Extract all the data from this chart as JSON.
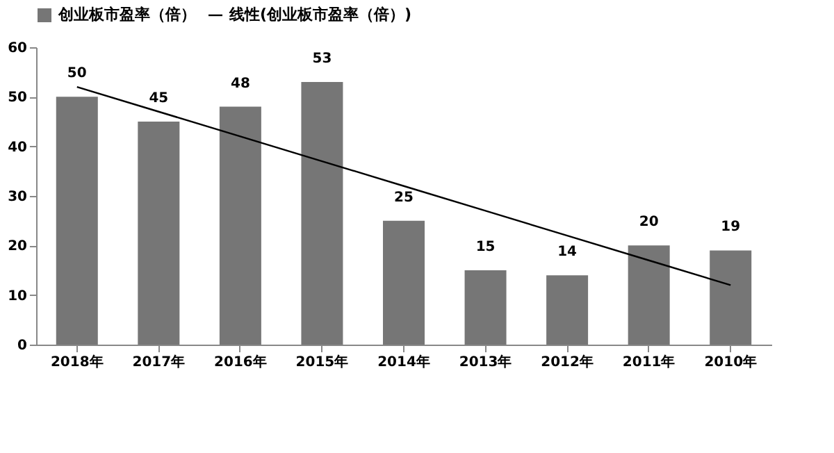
{
  "chart_data": {
    "type": "bar",
    "categories": [
      "2018年",
      "2017年",
      "2016年",
      "2015年",
      "2014年",
      "2013年",
      "2012年",
      "2011年",
      "2010年"
    ],
    "series": [
      {
        "name": "创业板市盈率（倍）",
        "color": "#767676",
        "values": [
          50,
          45,
          48,
          53,
          25,
          15,
          14,
          20,
          19
        ],
        "value_labels": [
          "50",
          "45",
          "48",
          "53",
          "25",
          "15",
          "14",
          "20",
          "19"
        ]
      },
      {
        "name": "线性(创业板市盈率（倍）)",
        "type": "line",
        "color": "#000000",
        "values": [
          52,
          47,
          42,
          37,
          32,
          27,
          22,
          17,
          12
        ]
      }
    ],
    "ylim": [
      0,
      60
    ],
    "yticks": [
      0,
      10,
      20,
      30,
      40,
      50,
      60
    ],
    "grid": false,
    "legend": "top"
  }
}
